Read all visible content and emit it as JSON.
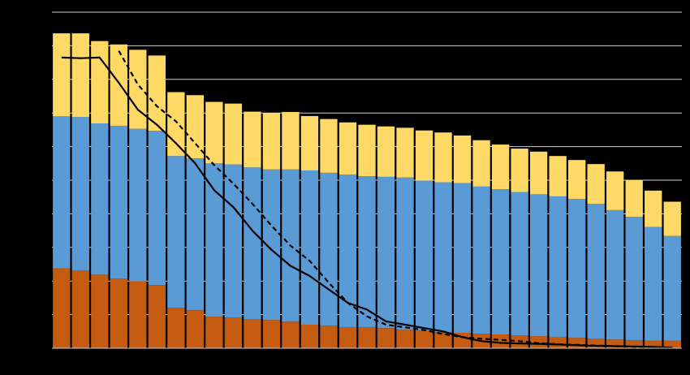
{
  "chart_data": {
    "type": "bar",
    "stacked": true,
    "title": "",
    "xlabel": "",
    "ylabel": "",
    "ylim": [
      0,
      100
    ],
    "grid": true,
    "legend": "none",
    "category_count": 33,
    "series": [
      {
        "kind": "bar",
        "color": "#C55A11",
        "values": [
          23.8,
          23.1,
          21.9,
          20.7,
          20.0,
          18.8,
          12.0,
          11.3,
          9.4,
          9.1,
          8.7,
          8.4,
          7.9,
          7.0,
          6.7,
          6.3,
          6.3,
          6.0,
          5.5,
          5.3,
          4.8,
          4.6,
          4.3,
          4.1,
          3.8,
          3.6,
          3.4,
          3.1,
          2.9,
          2.6,
          2.4,
          2.2,
          2.2
        ]
      },
      {
        "kind": "bar",
        "color": "#5B9BD5",
        "values": [
          45.2,
          45.7,
          45.0,
          45.5,
          45.3,
          45.9,
          45.2,
          45.2,
          45.6,
          45.6,
          45.1,
          44.8,
          45.3,
          45.9,
          45.5,
          45.4,
          44.9,
          45.0,
          45.3,
          44.6,
          44.6,
          44.5,
          43.8,
          43.2,
          42.7,
          42.2,
          41.8,
          41.3,
          40.1,
          38.5,
          36.7,
          33.9,
          31.2
        ]
      },
      {
        "kind": "bar",
        "color": "#FFD966",
        "values": [
          24.7,
          24.9,
          24.5,
          24.2,
          23.5,
          22.4,
          19.0,
          18.8,
          18.3,
          18.1,
          16.6,
          16.8,
          17.1,
          16.2,
          16.0,
          15.5,
          15.3,
          15.0,
          14.8,
          14.9,
          14.8,
          14.2,
          13.8,
          13.3,
          12.9,
          12.7,
          12.0,
          11.6,
          11.8,
          11.5,
          10.9,
          10.8,
          10.2
        ]
      },
      {
        "kind": "line",
        "style": "solid",
        "color": "#000000",
        "values": [
          86.5,
          86.3,
          86.5,
          79.0,
          71.0,
          66.5,
          61.0,
          55.0,
          47.0,
          42.0,
          35.0,
          29.3,
          24.5,
          21.5,
          17.5,
          13.5,
          11.5,
          8.0,
          7.0,
          6.0,
          5.0,
          3.3,
          2.1,
          1.6,
          1.4,
          1.3,
          1.1,
          0.9,
          0.7,
          0.6,
          0.5,
          0.4,
          0.2
        ]
      },
      {
        "kind": "line",
        "style": "dashed",
        "color": "#000000",
        "values": [
          null,
          null,
          null,
          88.5,
          78.5,
          72.0,
          67.5,
          61.0,
          54.5,
          49.0,
          43.0,
          36.5,
          30.5,
          26.0,
          19.5,
          13.5,
          9.5,
          7.0,
          6.2,
          5.4,
          4.2,
          3.3,
          2.8,
          2.5,
          2.1,
          1.5,
          1.2,
          1.0,
          0.8,
          0.6,
          0.4,
          0.3,
          0.1
        ]
      }
    ]
  }
}
